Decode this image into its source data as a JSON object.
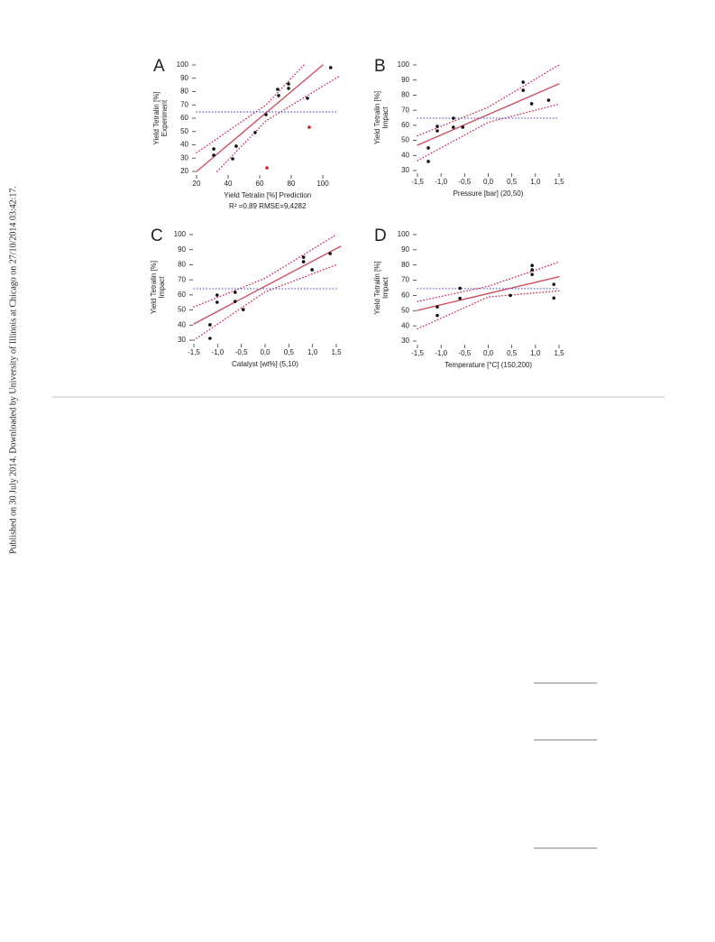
{
  "sidebar": "Published on 30 July 2014. Downloaded by University of Illinois at Chicago on 27/10/2014 03:42:17.",
  "chart_data": [
    {
      "type": "scatter",
      "panel": "A",
      "ylabel": [
        "Yield Tetralin [%]",
        "Experiment"
      ],
      "xlabel": "Yield Tetralin [%] Prediction",
      "annotation": "R² =0,89 RMSE=9,4282",
      "xlim": [
        20,
        110
      ],
      "ylim": [
        20,
        100
      ],
      "xticks": [
        20,
        40,
        60,
        80,
        100
      ],
      "yticks": [
        20,
        30,
        40,
        50,
        60,
        70,
        80,
        90,
        100
      ],
      "series": [
        {
          "type": "line",
          "color": "#d05060",
          "style": "solid",
          "x": [
            20,
            100
          ],
          "y": [
            20,
            100
          ]
        },
        {
          "type": "line",
          "color": "#d02040",
          "style": "dotted",
          "x": [
            20,
            64,
            88
          ],
          "y": [
            34,
            70,
            100
          ]
        },
        {
          "type": "line",
          "color": "#d02040",
          "style": "dotted",
          "x": [
            33,
            64,
            111
          ],
          "y": [
            20,
            58,
            92
          ]
        },
        {
          "type": "line",
          "color": "#6060d0",
          "style": "dotted",
          "x": [
            20,
            110
          ],
          "y": [
            64.7,
            64.7
          ]
        },
        {
          "type": "scatter",
          "color": "#111111",
          "x": [
            30.9,
            30.9,
            42.9,
            45.1,
            57.1,
            64,
            71.4,
            72,
            78.3,
            78.3,
            90.3,
            105
          ],
          "y": [
            36.9,
            32.2,
            29.5,
            39,
            49.2,
            62.7,
            81.7,
            77,
            85.8,
            82.4,
            75,
            98
          ]
        },
        {
          "type": "scatter",
          "color": "#d02020",
          "x": [
            91.4,
            64.6
          ],
          "y": [
            53.2,
            22.7
          ]
        }
      ]
    },
    {
      "type": "scatter",
      "panel": "B",
      "ylabel": [
        "Yield Tetralin [%]",
        "Impact"
      ],
      "xlabel": "Pressure [bar]  (20,50)",
      "xlim": [
        -1.5,
        1.5
      ],
      "ylim": [
        30,
        100
      ],
      "xticks": [
        {
          "value": -1.5,
          "label": "-1,5"
        },
        {
          "value": -1,
          "label": "-1,0"
        },
        {
          "value": -0.5,
          "label": "-0,5"
        },
        {
          "value": 0,
          "label": "0,0"
        },
        {
          "value": 0.5,
          "label": "0,5"
        },
        {
          "value": 1,
          "label": "1,0"
        },
        {
          "value": 1.5,
          "label": "1,5"
        }
      ],
      "yticks": [
        30,
        40,
        50,
        60,
        70,
        80,
        90,
        100
      ],
      "series": [
        {
          "type": "line",
          "color": "#d05060",
          "style": "solid",
          "x": [
            -1.5,
            1.5
          ],
          "y": [
            46.8,
            87.5
          ]
        },
        {
          "type": "line",
          "color": "#d02040",
          "style": "dotted",
          "x": [
            -1.5,
            0,
            1.5
          ],
          "y": [
            53,
            72,
            100
          ]
        },
        {
          "type": "line",
          "color": "#d02040",
          "style": "dotted",
          "x": [
            -1.5,
            0,
            1.5
          ],
          "y": [
            36.6,
            62,
            74
          ]
        },
        {
          "type": "line",
          "color": "#6060d0",
          "style": "dotted",
          "x": [
            -1.5,
            1.5
          ],
          "y": [
            64.7,
            64.7
          ]
        },
        {
          "type": "scatter",
          "color": "#111111",
          "x": [
            -1.27,
            -1.27,
            -1.08,
            -1.08,
            -0.74,
            -0.74,
            -0.54,
            0.74,
            0.74,
            0.92,
            1.28
          ],
          "y": [
            45,
            36,
            59.3,
            56.3,
            64.7,
            58.7,
            58.7,
            88.6,
            83.2,
            74.3,
            76.6
          ]
        }
      ]
    },
    {
      "type": "scatter",
      "panel": "C",
      "ylabel": [
        "Yield Tetralin [%]",
        "Impact"
      ],
      "xlabel": "Catalyst [wt%]  (5,10)",
      "xlim": [
        -1.5,
        1.5
      ],
      "ylim": [
        30,
        100
      ],
      "xticks": [
        {
          "value": -1.5,
          "label": "-1,5"
        },
        {
          "value": -1,
          "label": "-1,0"
        },
        {
          "value": -0.5,
          "label": "-0,5"
        },
        {
          "value": 0,
          "label": "0,0"
        },
        {
          "value": 0.5,
          "label": "0,5"
        },
        {
          "value": 1,
          "label": "1,0"
        },
        {
          "value": 1.5,
          "label": "1,5"
        }
      ],
      "yticks": [
        30,
        40,
        50,
        60,
        70,
        80,
        90,
        100
      ],
      "series": [
        {
          "type": "line",
          "color": "#d05060",
          "style": "solid",
          "x": [
            -1.5,
            1.59
          ],
          "y": [
            40.8,
            92.2
          ]
        },
        {
          "type": "line",
          "color": "#d02040",
          "style": "dotted",
          "x": [
            -1.5,
            0,
            1.5
          ],
          "y": [
            52,
            71,
            100
          ]
        },
        {
          "type": "line",
          "color": "#d02040",
          "style": "dotted",
          "x": [
            -1.5,
            0,
            1.5
          ],
          "y": [
            30,
            62,
            80
          ]
        },
        {
          "type": "line",
          "color": "#6060d0",
          "style": "dotted",
          "x": [
            -1.5,
            1.5
          ],
          "y": [
            64.1,
            64.1
          ]
        },
        {
          "type": "scatter",
          "color": "#111111",
          "x": [
            -1.16,
            -1.16,
            -1.01,
            -1.01,
            -0.63,
            -0.63,
            -0.46,
            0.81,
            0.81,
            0.99,
            1.37
          ],
          "y": [
            40.2,
            31.2,
            59.9,
            55.1,
            61.7,
            55.7,
            50.3,
            85,
            82,
            76.7,
            87.4
          ]
        }
      ]
    },
    {
      "type": "scatter",
      "panel": "D",
      "ylabel": [
        "Yield Tetralin [%]",
        "Impact"
      ],
      "xlabel": "Temperature [°C]  (150,200)",
      "xlim": [
        -1.5,
        1.5
      ],
      "ylim": [
        30,
        100
      ],
      "xticks": [
        {
          "value": -1.5,
          "label": "-1,5"
        },
        {
          "value": -1,
          "label": "-1,0"
        },
        {
          "value": -0.5,
          "label": "-0,5"
        },
        {
          "value": 0,
          "label": "0,0"
        },
        {
          "value": 0.5,
          "label": "0,5"
        },
        {
          "value": 1,
          "label": "1,0"
        },
        {
          "value": 1.5,
          "label": "1,5"
        }
      ],
      "yticks": [
        30,
        40,
        50,
        60,
        70,
        80,
        90,
        100
      ],
      "series": [
        {
          "type": "line",
          "color": "#d05060",
          "style": "solid",
          "x": [
            -1.5,
            1.5
          ],
          "y": [
            50.2,
            72.3
          ]
        },
        {
          "type": "line",
          "color": "#d02040",
          "style": "dotted",
          "x": [
            -1.5,
            0,
            1.5
          ],
          "y": [
            56,
            66,
            82
          ]
        },
        {
          "type": "line",
          "color": "#d02040",
          "style": "dotted",
          "x": [
            -1.5,
            0,
            1.5
          ],
          "y": [
            38,
            59,
            63
          ]
        },
        {
          "type": "line",
          "color": "#6060d0",
          "style": "dotted",
          "x": [
            -1.5,
            1.5
          ],
          "y": [
            64.5,
            64.5
          ]
        },
        {
          "type": "scatter",
          "color": "#111111",
          "x": [
            -1.08,
            -1.08,
            -0.6,
            -0.6,
            0.47,
            0.93,
            0.93,
            0.93,
            1.39,
            1.39
          ],
          "y": [
            52.5,
            46.8,
            64.7,
            58.1,
            60,
            79.7,
            76.8,
            73.8,
            67.3,
            58.3
          ]
        }
      ]
    }
  ]
}
